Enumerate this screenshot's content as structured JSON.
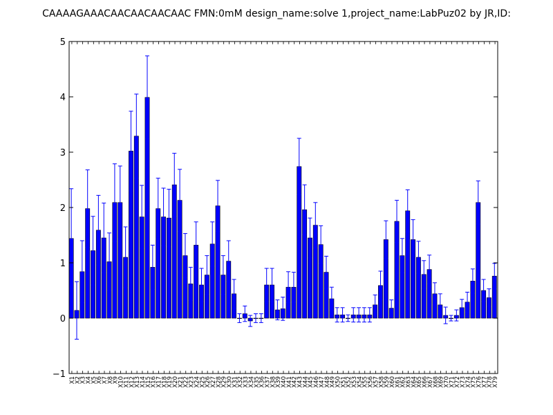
{
  "chart_data": {
    "type": "bar",
    "title": "CAAAAGAAACAACAACAACAAC  FMN:0mM  design_name:solve 1,project_name:LabPuz02 by JR,ID:",
    "xlabel": "",
    "ylabel": "",
    "ylim": [
      -1,
      5
    ],
    "yticks": [
      "−1",
      "0",
      "1",
      "2",
      "3",
      "4",
      "5"
    ],
    "yticks_values": [
      -1,
      0,
      1,
      2,
      3,
      4,
      5
    ],
    "grid": false,
    "bar_color": "#0000ff",
    "error_color": "#0000ff",
    "categories": [
      "X1",
      "X2",
      "X3",
      "X4",
      "X5",
      "X6",
      "X7",
      "X8",
      "X9",
      "X10",
      "X11",
      "X12",
      "X13",
      "X14",
      "X15",
      "X16",
      "X17",
      "X18",
      "X19",
      "X20",
      "X21",
      "X22",
      "X23",
      "X24",
      "X25",
      "X26",
      "X27",
      "X28",
      "X29",
      "X30",
      "X31",
      "X32",
      "X33",
      "X34",
      "X35",
      "X36",
      "X37",
      "X38",
      "X39",
      "X40",
      "X41",
      "X42",
      "X43",
      "X44",
      "X45",
      "X46",
      "X47",
      "X48",
      "X49",
      "X50",
      "X51",
      "X52",
      "X53",
      "X54",
      "X55",
      "X56",
      "X57",
      "X58",
      "X59",
      "X60",
      "X61",
      "X62",
      "X63",
      "X64",
      "X65",
      "X66",
      "X67",
      "X68",
      "X69",
      "X70",
      "X71",
      "X72",
      "X73",
      "X74",
      "X75",
      "X76",
      "X77",
      "X78",
      "X79"
    ],
    "values": [
      1.44,
      0.14,
      0.84,
      1.98,
      1.22,
      1.59,
      1.45,
      1.02,
      2.09,
      2.09,
      1.1,
      3.02,
      3.29,
      1.83,
      3.99,
      0.92,
      1.98,
      1.83,
      1.81,
      2.41,
      2.13,
      1.13,
      0.62,
      1.32,
      0.6,
      0.78,
      1.34,
      2.03,
      0.78,
      1.03,
      0.44,
      0.0,
      0.08,
      -0.05,
      0.0,
      0.0,
      0.6,
      0.6,
      0.15,
      0.17,
      0.56,
      0.56,
      2.74,
      1.96,
      1.45,
      1.68,
      1.33,
      0.83,
      0.35,
      0.06,
      0.06,
      0.0,
      0.06,
      0.06,
      0.06,
      0.06,
      0.24,
      0.59,
      1.42,
      0.18,
      1.75,
      1.13,
      1.94,
      1.42,
      1.1,
      0.79,
      0.88,
      0.44,
      0.24,
      0.05,
      0.0,
      0.05,
      0.19,
      0.29,
      0.67,
      2.09,
      0.5,
      0.37,
      0.76
    ],
    "errors": [
      0.9,
      0.52,
      0.56,
      0.7,
      0.62,
      0.63,
      0.63,
      0.52,
      0.7,
      0.66,
      0.55,
      0.72,
      0.76,
      0.57,
      0.75,
      0.4,
      0.55,
      0.52,
      0.52,
      0.57,
      0.56,
      0.4,
      0.3,
      0.42,
      0.3,
      0.35,
      0.4,
      0.46,
      0.35,
      0.37,
      0.26,
      0.08,
      0.14,
      0.1,
      0.08,
      0.08,
      0.3,
      0.3,
      0.18,
      0.21,
      0.28,
      0.27,
      0.51,
      0.45,
      0.36,
      0.41,
      0.34,
      0.29,
      0.21,
      0.13,
      0.13,
      0.06,
      0.13,
      0.13,
      0.13,
      0.13,
      0.18,
      0.26,
      0.34,
      0.15,
      0.38,
      0.31,
      0.38,
      0.36,
      0.29,
      0.25,
      0.26,
      0.2,
      0.2,
      0.15,
      0.05,
      0.1,
      0.15,
      0.18,
      0.22,
      0.39,
      0.2,
      0.16,
      0.23
    ]
  }
}
